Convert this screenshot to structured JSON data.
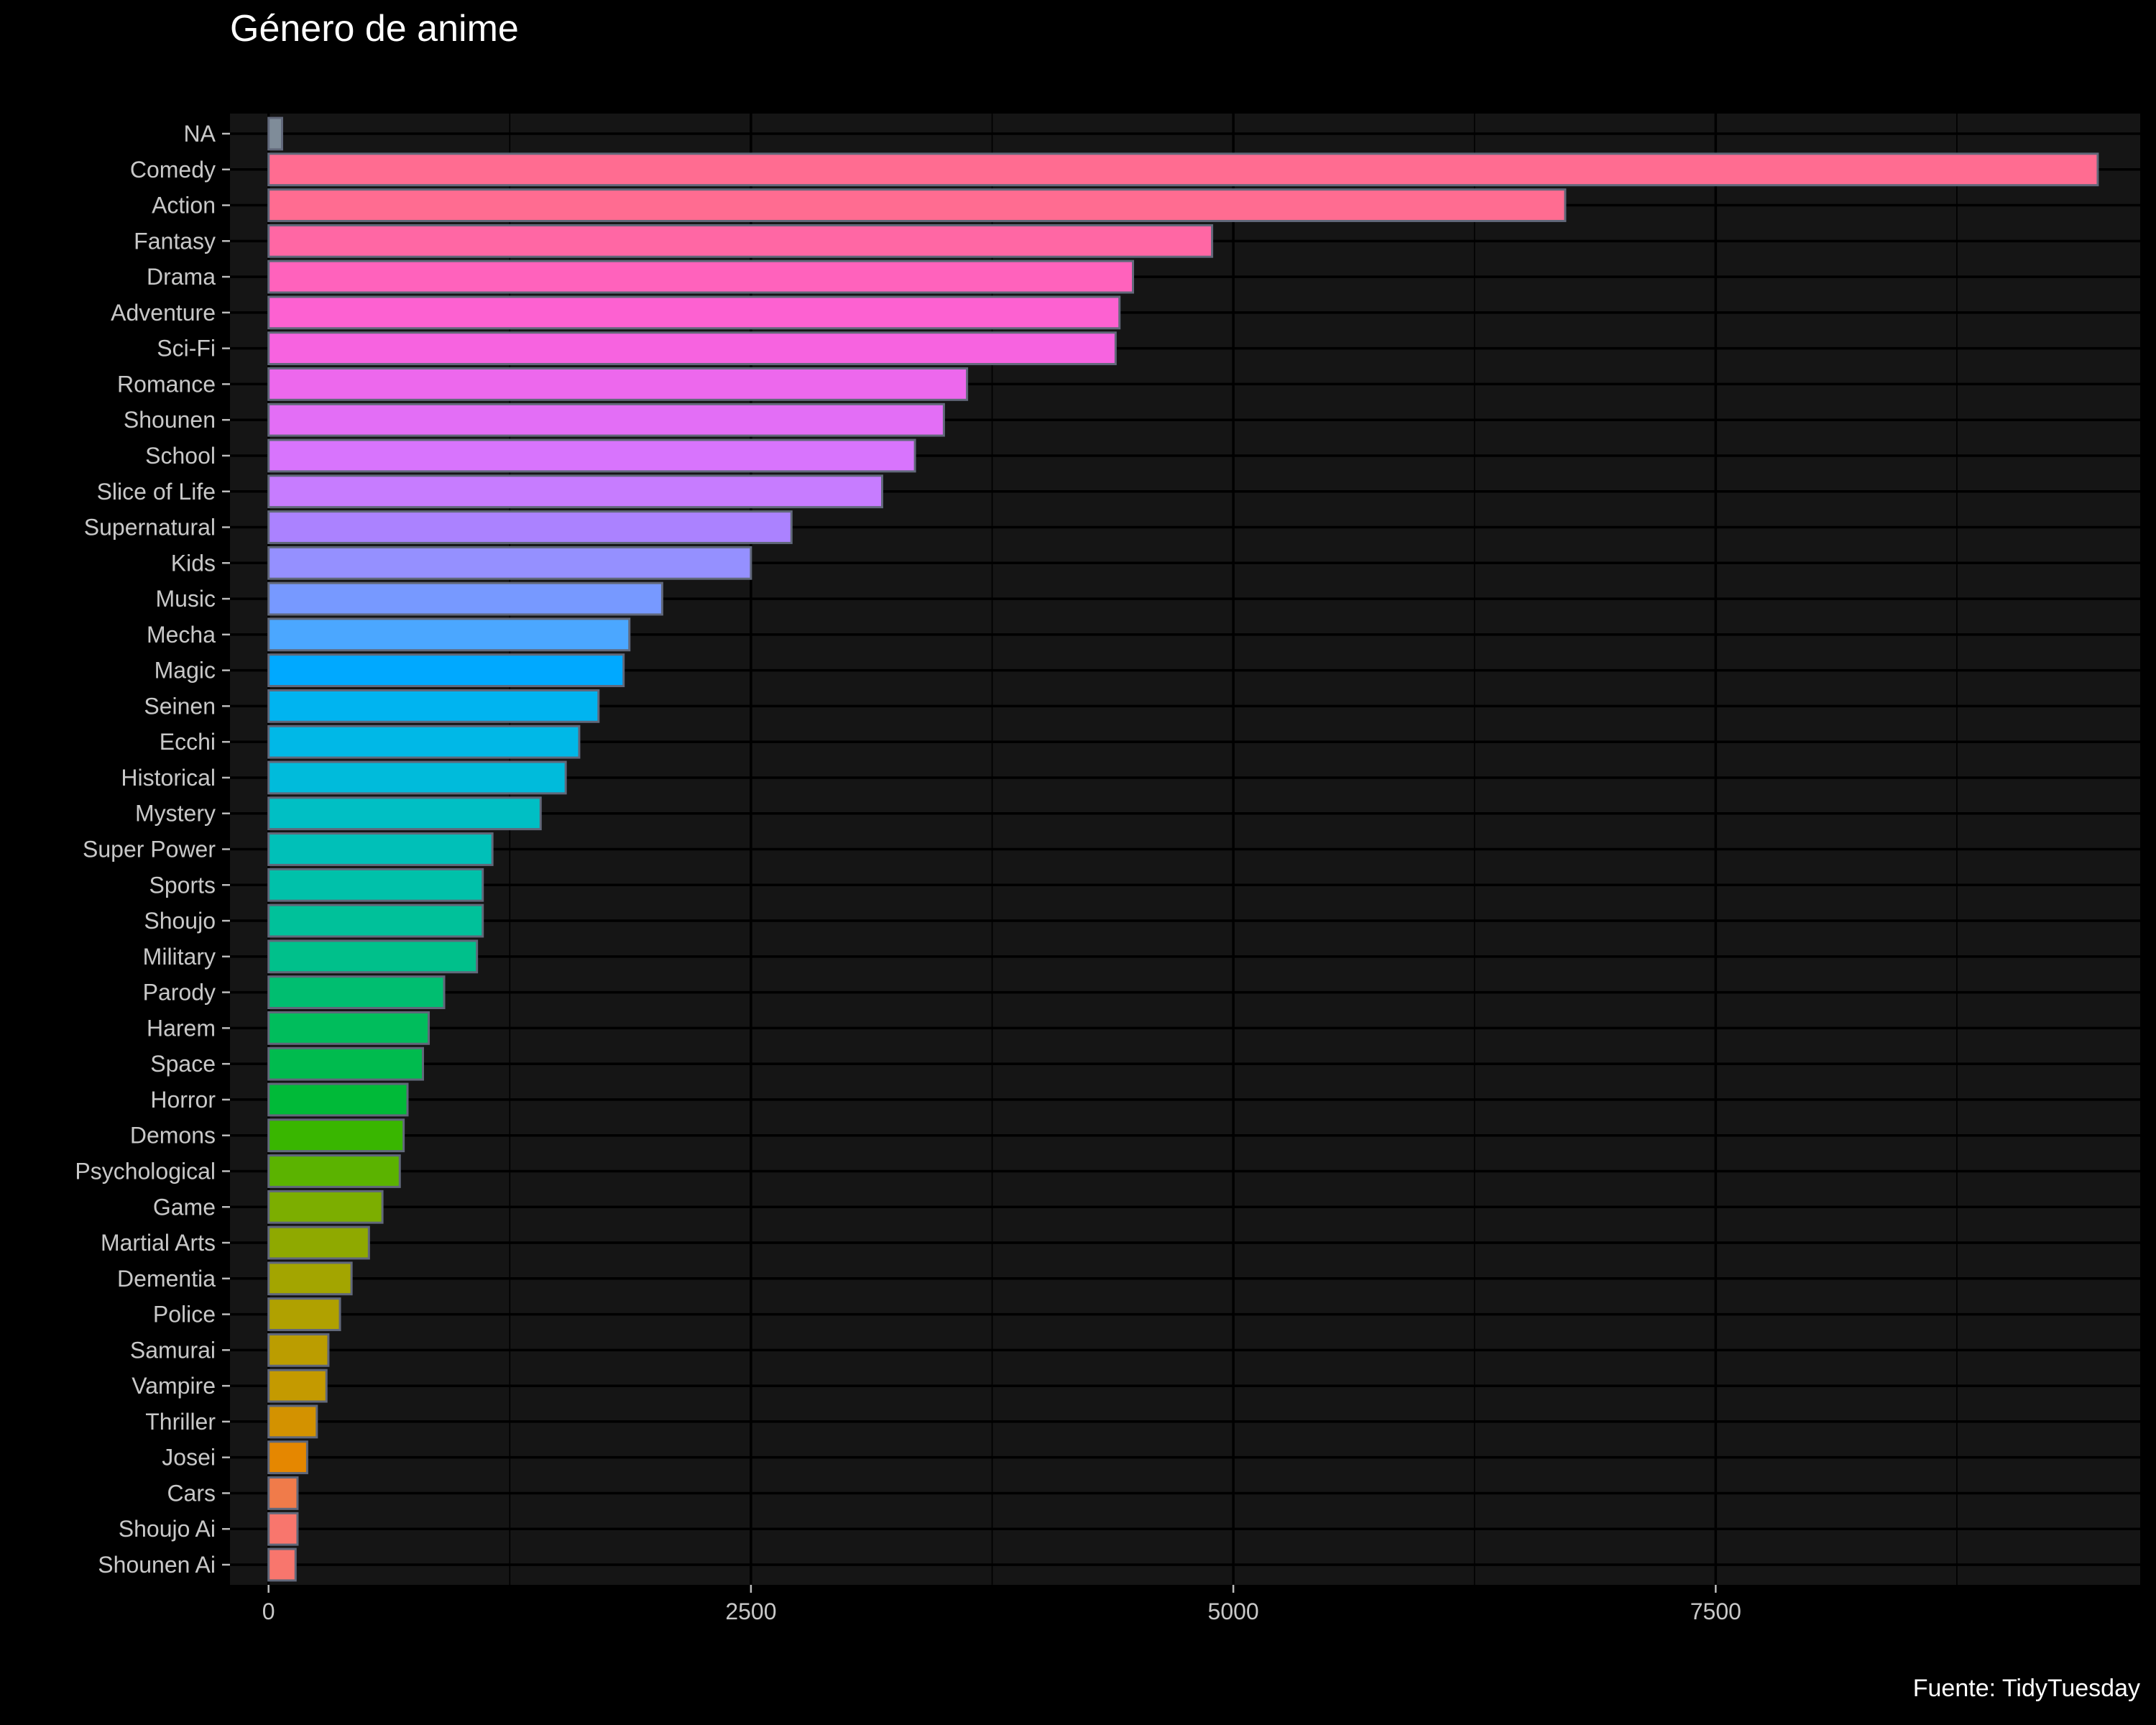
{
  "chart_data": {
    "type": "bar",
    "orientation": "horizontal",
    "title": "Género de anime",
    "caption": "Fuente: TidyTuesday",
    "xlabel": "",
    "ylabel": "",
    "xlim": [
      -200,
      9700
    ],
    "x_ticks": [
      0,
      2500,
      5000,
      7500
    ],
    "x_tick_labels": [
      "0",
      "2500",
      "5000",
      "7500"
    ],
    "grid": true,
    "legend": "none",
    "categories": [
      "NA",
      "Comedy",
      "Action",
      "Fantasy",
      "Drama",
      "Adventure",
      "Sci-Fi",
      "Romance",
      "Shounen",
      "School",
      "Slice of Life",
      "Supernatural",
      "Kids",
      "Music",
      "Mecha",
      "Magic",
      "Seinen",
      "Ecchi",
      "Historical",
      "Mystery",
      "Super Power",
      "Sports",
      "Shoujo",
      "Military",
      "Parody",
      "Harem",
      "Space",
      "Horror",
      "Demons",
      "Psychological",
      "Game",
      "Martial Arts",
      "Dementia",
      "Police",
      "Samurai",
      "Vampire",
      "Thriller",
      "Josei",
      "Cars",
      "Shoujo Ai",
      "Shounen Ai"
    ],
    "values": [
      70,
      9480,
      6720,
      4890,
      4480,
      4410,
      4390,
      3620,
      3500,
      3350,
      3180,
      2710,
      2500,
      2040,
      1870,
      1840,
      1710,
      1610,
      1540,
      1410,
      1160,
      1110,
      1110,
      1080,
      910,
      830,
      800,
      720,
      700,
      680,
      590,
      520,
      430,
      370,
      310,
      300,
      250,
      200,
      150,
      150,
      140
    ],
    "colors": [
      "#7f8c99",
      "#ff6c91",
      "#ff6c91",
      "#ff67a4",
      "#ff62bc",
      "#fd61d1",
      "#f763e0",
      "#ed68ed",
      "#e36ef6",
      "#d874fd",
      "#c77cff",
      "#ab82ff",
      "#9590ff",
      "#7799ff",
      "#4ba7ff",
      "#00a9ff",
      "#00b4f0",
      "#00b8e7",
      "#00bbdb",
      "#00bfc4",
      "#00c0b8",
      "#00c1aa",
      "#00c19a",
      "#00c08b",
      "#00be70",
      "#00bd5c",
      "#00bb4e",
      "#00ba38",
      "#39b600",
      "#5bb300",
      "#7cae00",
      "#8fa900",
      "#a3a500",
      "#b0a100",
      "#bb9d00",
      "#c49a00",
      "#d39200",
      "#e58700",
      "#f07b4a",
      "#f8766d",
      "#f8766d"
    ]
  }
}
